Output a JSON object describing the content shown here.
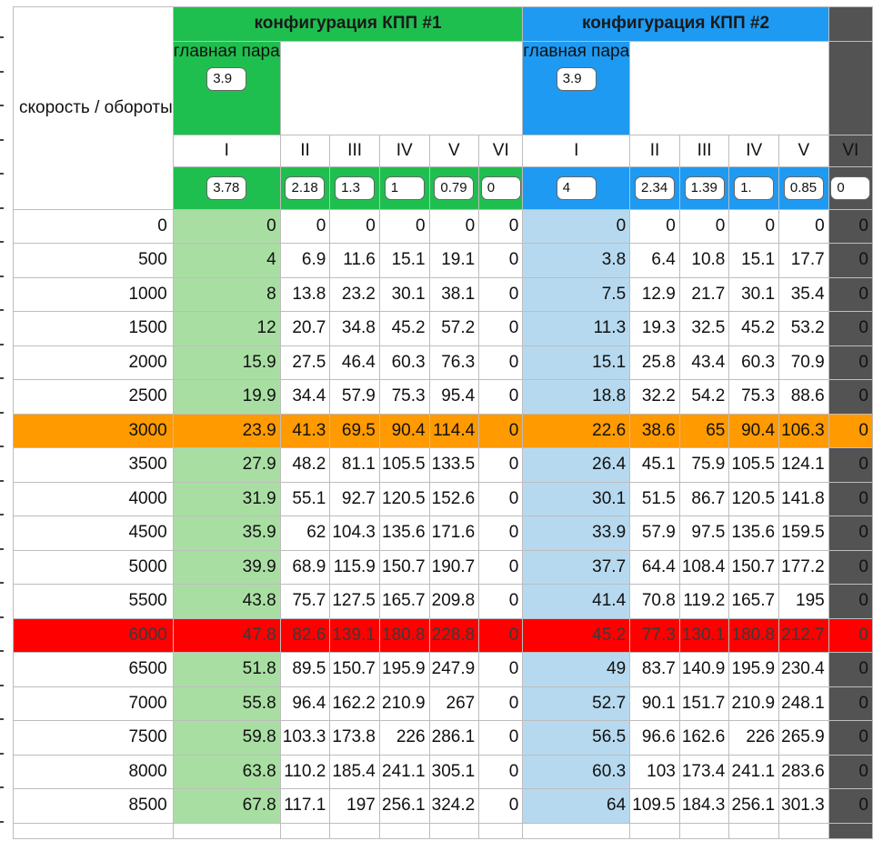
{
  "colors": {
    "green_header": "#1fbf4f",
    "blue_header": "#1e9af2",
    "green_col": "#a9dea3",
    "blue_col": "#b6d9ef",
    "dark_col": "#535353",
    "orange_row": "#ff9a00",
    "red_row": "#ff0000"
  },
  "header": {
    "speed_label": "скорость / обороты",
    "config1": {
      "title": "конфигурация КПП #1",
      "pair_label": "главная пара",
      "pair_value": "3.9",
      "gears": [
        "I",
        "II",
        "III",
        "IV",
        "V",
        "VI"
      ],
      "ratios": [
        "3.78",
        "2.18",
        "1.3",
        "1",
        "0.79",
        "0"
      ]
    },
    "config2": {
      "title": "конфигурация КПП #2",
      "pair_label": "главная пара",
      "pair_value": "3.9",
      "gears": [
        "I",
        "II",
        "III",
        "IV",
        "V",
        "VI"
      ],
      "ratios": [
        "4",
        "2.34",
        "1.39",
        "1.",
        "0.85",
        "0"
      ]
    }
  },
  "rows": [
    {
      "rpm": "0",
      "c1": [
        "0",
        "0",
        "0",
        "0",
        "0",
        "0"
      ],
      "c2": [
        "0",
        "0",
        "0",
        "0",
        "0",
        "0"
      ]
    },
    {
      "rpm": "500",
      "c1": [
        "4",
        "6.9",
        "11.6",
        "15.1",
        "19.1",
        "0"
      ],
      "c2": [
        "3.8",
        "6.4",
        "10.8",
        "15.1",
        "17.7",
        "0"
      ]
    },
    {
      "rpm": "1000",
      "c1": [
        "8",
        "13.8",
        "23.2",
        "30.1",
        "38.1",
        "0"
      ],
      "c2": [
        "7.5",
        "12.9",
        "21.7",
        "30.1",
        "35.4",
        "0"
      ]
    },
    {
      "rpm": "1500",
      "c1": [
        "12",
        "20.7",
        "34.8",
        "45.2",
        "57.2",
        "0"
      ],
      "c2": [
        "11.3",
        "19.3",
        "32.5",
        "45.2",
        "53.2",
        "0"
      ]
    },
    {
      "rpm": "2000",
      "c1": [
        "15.9",
        "27.5",
        "46.4",
        "60.3",
        "76.3",
        "0"
      ],
      "c2": [
        "15.1",
        "25.8",
        "43.4",
        "60.3",
        "70.9",
        "0"
      ]
    },
    {
      "rpm": "2500",
      "c1": [
        "19.9",
        "34.4",
        "57.9",
        "75.3",
        "95.4",
        "0"
      ],
      "c2": [
        "18.8",
        "32.2",
        "54.2",
        "75.3",
        "88.6",
        "0"
      ]
    },
    {
      "rpm": "3000",
      "c1": [
        "23.9",
        "41.3",
        "69.5",
        "90.4",
        "114.4",
        "0"
      ],
      "c2": [
        "22.6",
        "38.6",
        "65",
        "90.4",
        "106.3",
        "0"
      ]
    },
    {
      "rpm": "3500",
      "c1": [
        "27.9",
        "48.2",
        "81.1",
        "105.5",
        "133.5",
        "0"
      ],
      "c2": [
        "26.4",
        "45.1",
        "75.9",
        "105.5",
        "124.1",
        "0"
      ]
    },
    {
      "rpm": "4000",
      "c1": [
        "31.9",
        "55.1",
        "92.7",
        "120.5",
        "152.6",
        "0"
      ],
      "c2": [
        "30.1",
        "51.5",
        "86.7",
        "120.5",
        "141.8",
        "0"
      ]
    },
    {
      "rpm": "4500",
      "c1": [
        "35.9",
        "62",
        "104.3",
        "135.6",
        "171.6",
        "0"
      ],
      "c2": [
        "33.9",
        "57.9",
        "97.5",
        "135.6",
        "159.5",
        "0"
      ]
    },
    {
      "rpm": "5000",
      "c1": [
        "39.9",
        "68.9",
        "115.9",
        "150.7",
        "190.7",
        "0"
      ],
      "c2": [
        "37.7",
        "64.4",
        "108.4",
        "150.7",
        "177.2",
        "0"
      ]
    },
    {
      "rpm": "5500",
      "c1": [
        "43.8",
        "75.7",
        "127.5",
        "165.7",
        "209.8",
        "0"
      ],
      "c2": [
        "41.4",
        "70.8",
        "119.2",
        "165.7",
        "195",
        "0"
      ]
    },
    {
      "rpm": "6000",
      "c1": [
        "47.8",
        "82.6",
        "139.1",
        "180.8",
        "228.8",
        "0"
      ],
      "c2": [
        "45.2",
        "77.3",
        "130.1",
        "180.8",
        "212.7",
        "0"
      ]
    },
    {
      "rpm": "6500",
      "c1": [
        "51.8",
        "89.5",
        "150.7",
        "195.9",
        "247.9",
        "0"
      ],
      "c2": [
        "49",
        "83.7",
        "140.9",
        "195.9",
        "230.4",
        "0"
      ]
    },
    {
      "rpm": "7000",
      "c1": [
        "55.8",
        "96.4",
        "162.2",
        "210.9",
        "267",
        "0"
      ],
      "c2": [
        "52.7",
        "90.1",
        "151.7",
        "210.9",
        "248.1",
        "0"
      ]
    },
    {
      "rpm": "7500",
      "c1": [
        "59.8",
        "103.3",
        "173.8",
        "226",
        "286.1",
        "0"
      ],
      "c2": [
        "56.5",
        "96.6",
        "162.6",
        "226",
        "265.9",
        "0"
      ]
    },
    {
      "rpm": "8000",
      "c1": [
        "63.8",
        "110.2",
        "185.4",
        "241.1",
        "305.1",
        "0"
      ],
      "c2": [
        "60.3",
        "103",
        "173.4",
        "241.1",
        "283.6",
        "0"
      ]
    },
    {
      "rpm": "8500",
      "c1": [
        "67.8",
        "117.1",
        "197",
        "256.1",
        "324.2",
        "0"
      ],
      "c2": [
        "64",
        "109.5",
        "184.3",
        "256.1",
        "301.3",
        "0"
      ]
    }
  ]
}
